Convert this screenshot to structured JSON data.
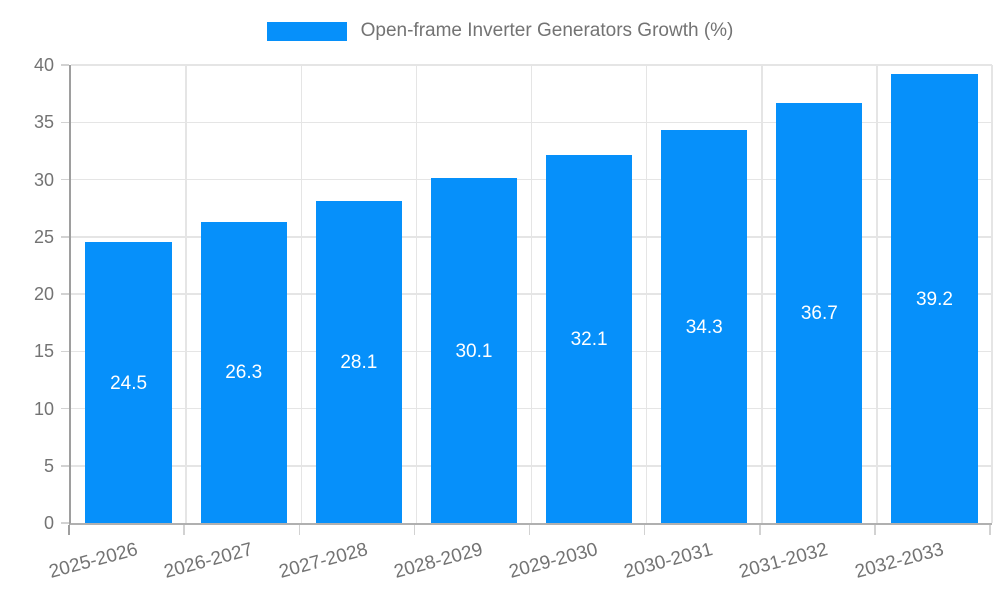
{
  "legend": {
    "label": "Open-frame Inverter Generators Growth (%)"
  },
  "chart_data": {
    "type": "bar",
    "title": "",
    "series_name": "Open-frame Inverter Generators Growth (%)",
    "categories": [
      "2025-2026",
      "2026-2027",
      "2027-2028",
      "2028-2029",
      "2029-2030",
      "2030-2031",
      "2031-2032",
      "2032-2033"
    ],
    "values": [
      24.5,
      26.3,
      28.1,
      30.1,
      32.1,
      34.3,
      36.7,
      39.2
    ],
    "value_labels": [
      "24.5",
      "26.3",
      "28.1",
      "30.1",
      "32.1",
      "34.3",
      "36.7",
      "39.2"
    ],
    "xlabel": "",
    "ylabel": "",
    "ylim": [
      0,
      40
    ],
    "yticks": [
      0,
      5,
      10,
      15,
      20,
      25,
      30,
      35,
      40
    ],
    "ytick_labels": [
      "0",
      "5",
      "10",
      "15",
      "20",
      "25",
      "30",
      "35",
      "40"
    ],
    "grid": true,
    "legend_position": "top",
    "bar_color": "#0690fa",
    "bar_label_color": "#ffffff",
    "axis_text_color": "#737373",
    "gridline_color": "#e5e5e5",
    "axis_line_color": "#9e9e9e"
  }
}
